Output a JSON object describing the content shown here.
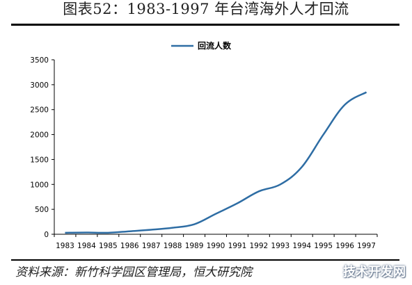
{
  "header": {
    "title": "图表52：1983-1997 年台湾海外人才回流"
  },
  "footer": {
    "source": "资料来源：新竹科学园区管理局，恒大研究院",
    "watermark": "技术开发网"
  },
  "colors": {
    "line": "#2e6da4",
    "axis": "#000000"
  },
  "chart_data": {
    "type": "line",
    "title": "",
    "xlabel": "",
    "ylabel": "",
    "legend_position": "top-center",
    "grid": false,
    "ylim": [
      0,
      3500
    ],
    "yticks": [
      "0",
      "500",
      "1000",
      "1500",
      "2000",
      "2500",
      "3000",
      "3500"
    ],
    "categories": [
      "1983",
      "1984",
      "1985",
      "1986",
      "1987",
      "1988",
      "1989",
      "1990",
      "1991",
      "1992",
      "1993",
      "1994",
      "1995",
      "1996",
      "1997"
    ],
    "series": [
      {
        "name": "回流人数",
        "values": [
          30,
          35,
          30,
          60,
          90,
          130,
          200,
          410,
          620,
          860,
          1000,
          1350,
          2000,
          2600,
          2850
        ]
      }
    ]
  }
}
